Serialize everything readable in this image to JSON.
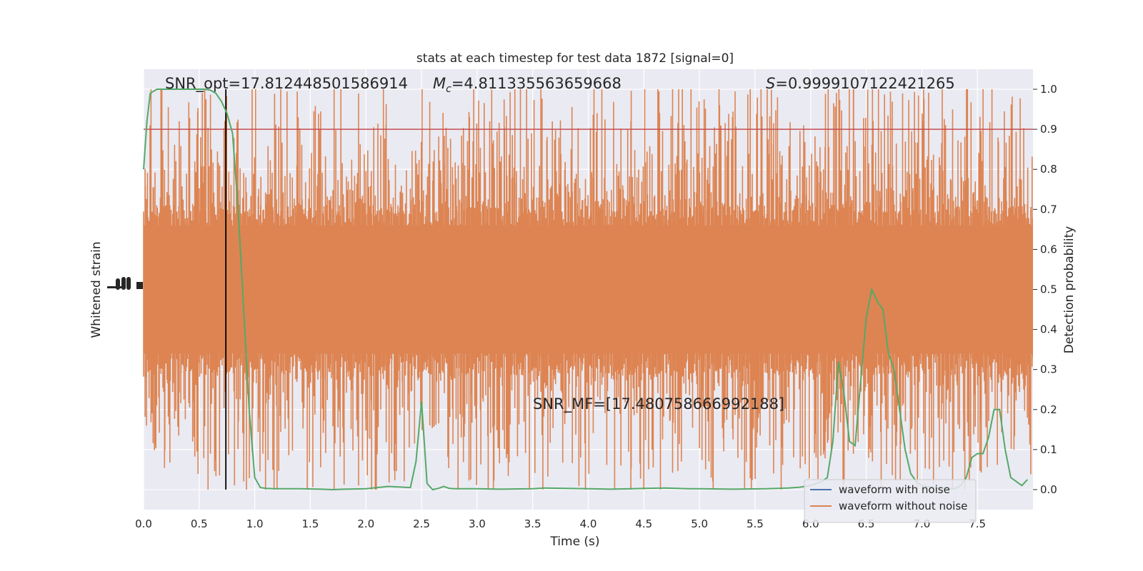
{
  "chart_data": {
    "type": "line",
    "title": "stats at each timestep for test data 1872 [signal=0]",
    "xlabel": "Time (s)",
    "ylabel_left": "Whitened strain",
    "ylabel_right": "Detection probability",
    "xlim": [
      0,
      8
    ],
    "ylim_right": [
      -0.05,
      1.05
    ],
    "x_ticks": [
      "0.0",
      "0.5",
      "1.0",
      "1.5",
      "2.0",
      "2.5",
      "3.0",
      "3.5",
      "4.0",
      "4.5",
      "5.0",
      "5.5",
      "6.0",
      "6.5",
      "7.0",
      "7.5"
    ],
    "y_ticks_right": [
      "0.0",
      "0.1",
      "0.2",
      "0.3",
      "0.4",
      "0.5",
      "0.6",
      "0.7",
      "0.8",
      "0.9",
      "1.0"
    ],
    "grid": true,
    "legend": {
      "placement": "lower-right",
      "entries": [
        {
          "label": "waveform with noise",
          "color": "#4c72b0"
        },
        {
          "label": "waveform without noise",
          "color": "#dd8452"
        }
      ]
    },
    "annotations": {
      "snr_opt": "SNR_opt=17.812448501586914",
      "mc_prefix": "M",
      "mc_sub": "c",
      "mc_value": "=4.811335563659668",
      "s_prefix": "S",
      "s_value": "=0.9999107122421265",
      "snr_mf": "SNR_MF=[17.480758666992188]"
    },
    "threshold": {
      "value": 0.9,
      "color": "#c44e52"
    },
    "marker_line": {
      "x": 0.74,
      "color": "#000000"
    },
    "noise_band": {
      "color": "#dd8452",
      "center": 0.5,
      "core_half_width": 0.16,
      "spike_max": 1.0,
      "spike_min": 0.0
    },
    "series": [
      {
        "name": "",
        "color": "#55a868",
        "x": [
          0.0,
          0.03,
          0.06,
          0.12,
          0.25,
          0.4,
          0.55,
          0.6,
          0.65,
          0.7,
          0.75,
          0.8,
          0.85,
          0.9,
          0.95,
          1.0,
          1.05,
          1.1,
          1.2,
          1.4,
          1.6,
          1.7,
          1.8,
          2.0,
          2.2,
          2.4,
          2.45,
          2.5,
          2.55,
          2.6,
          2.65,
          2.7,
          2.75,
          2.8,
          3.0,
          3.2,
          3.5,
          3.6,
          3.8,
          4.0,
          4.2,
          4.5,
          4.7,
          4.9,
          5.0,
          5.3,
          5.6,
          5.8,
          5.9,
          6.0,
          6.05,
          6.1,
          6.15,
          6.2,
          6.25,
          6.3,
          6.35,
          6.4,
          6.45,
          6.5,
          6.55,
          6.6,
          6.65,
          6.7,
          6.75,
          6.8,
          6.85,
          6.9,
          6.95,
          7.0,
          7.1,
          7.2,
          7.3,
          7.35,
          7.4,
          7.45,
          7.5,
          7.55,
          7.6,
          7.65,
          7.7,
          7.75,
          7.8,
          7.85,
          7.9,
          7.95
        ],
        "values": [
          0.8,
          0.92,
          0.99,
          1.0,
          1.0,
          1.0,
          1.0,
          0.998,
          0.99,
          0.97,
          0.94,
          0.89,
          0.7,
          0.45,
          0.2,
          0.03,
          0.005,
          0.003,
          0.002,
          0.002,
          0.001,
          0.0,
          0.001,
          0.002,
          0.008,
          0.005,
          0.07,
          0.22,
          0.015,
          0.0,
          0.003,
          0.008,
          0.003,
          0.002,
          0.002,
          0.001,
          0.002,
          0.004,
          0.003,
          0.002,
          0.001,
          0.003,
          0.004,
          0.002,
          0.002,
          0.001,
          0.002,
          0.004,
          0.006,
          0.01,
          0.015,
          0.02,
          0.03,
          0.12,
          0.32,
          0.24,
          0.12,
          0.11,
          0.27,
          0.43,
          0.5,
          0.47,
          0.45,
          0.34,
          0.3,
          0.2,
          0.1,
          0.04,
          0.02,
          0.01,
          0.005,
          0.003,
          0.002,
          0.01,
          0.03,
          0.08,
          0.09,
          0.09,
          0.13,
          0.2,
          0.2,
          0.1,
          0.03,
          0.02,
          0.01,
          0.025
        ]
      }
    ]
  }
}
